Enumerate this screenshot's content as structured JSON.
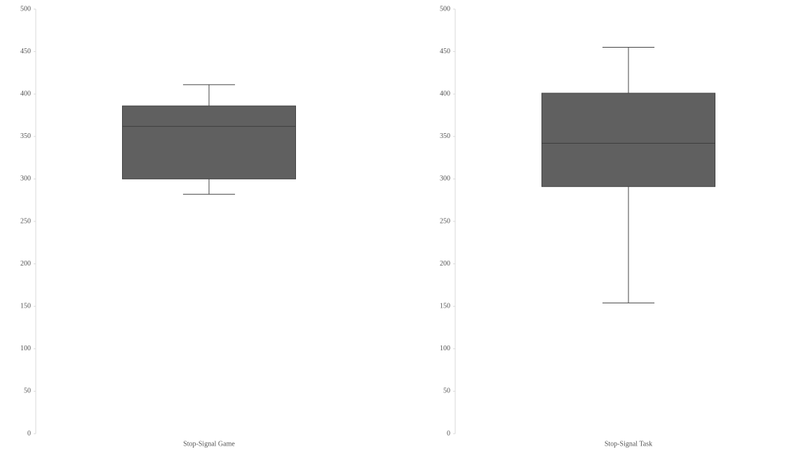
{
  "chart_data": [
    {
      "type": "box",
      "categories": [
        "Stop-Signal Game"
      ],
      "low": [
        282
      ],
      "q1": [
        300
      ],
      "median": [
        362
      ],
      "q3": [
        386
      ],
      "high": [
        411
      ],
      "color": "#606060",
      "ylim": [
        0,
        500
      ],
      "yticks": [
        0,
        50,
        100,
        150,
        200,
        250,
        300,
        350,
        400,
        450,
        500
      ]
    },
    {
      "type": "box",
      "categories": [
        "Stop-Signal Task"
      ],
      "low": [
        154
      ],
      "q1": [
        291
      ],
      "median": [
        342
      ],
      "q3": [
        401
      ],
      "high": [
        455
      ],
      "color": "#606060",
      "ylim": [
        0,
        500
      ],
      "yticks": [
        0,
        50,
        100,
        150,
        200,
        250,
        300,
        350,
        400,
        450,
        500
      ]
    }
  ]
}
